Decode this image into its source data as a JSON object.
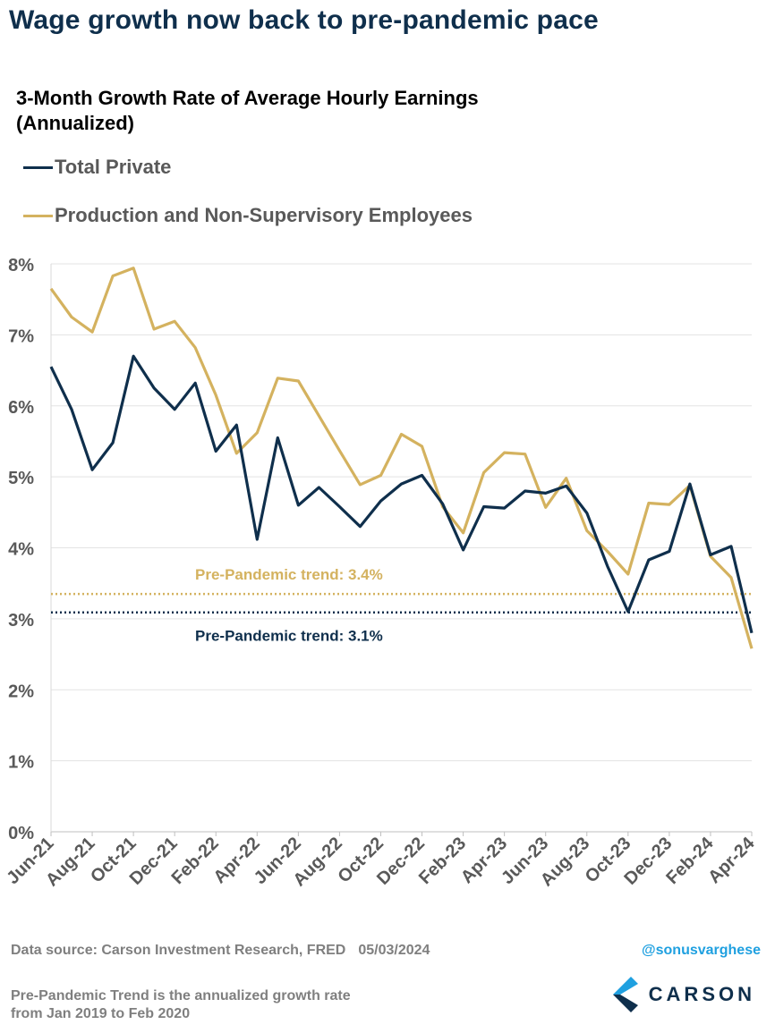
{
  "header": {
    "title": "Wage growth now back to pre-pandemic pace"
  },
  "chart_data": {
    "type": "line",
    "title": "3-Month Growth Rate of Average Hourly Earnings (Annualized)",
    "xlabel": "",
    "ylabel": "",
    "ylim": [
      0,
      8
    ],
    "yticks": [
      "0%",
      "1%",
      "2%",
      "3%",
      "4%",
      "5%",
      "6%",
      "7%",
      "8%"
    ],
    "grid": true,
    "legend_position": "top-left",
    "x": [
      "Jun-21",
      "Jul-21",
      "Aug-21",
      "Sep-21",
      "Oct-21",
      "Nov-21",
      "Dec-21",
      "Jan-22",
      "Feb-22",
      "Mar-22",
      "Apr-22",
      "May-22",
      "Jun-22",
      "Jul-22",
      "Aug-22",
      "Sep-22",
      "Oct-22",
      "Nov-22",
      "Dec-22",
      "Jan-23",
      "Feb-23",
      "Mar-23",
      "Apr-23",
      "May-23",
      "Jun-23",
      "Jul-23",
      "Aug-23",
      "Sep-23",
      "Oct-23",
      "Nov-23",
      "Dec-23",
      "Jan-24",
      "Feb-24",
      "Mar-24",
      "Apr-24"
    ],
    "x_tick_labels": [
      "Jun-21",
      "Aug-21",
      "Oct-21",
      "Dec-21",
      "Feb-22",
      "Apr-22",
      "Jun-22",
      "Aug-22",
      "Oct-22",
      "Dec-22",
      "Feb-23",
      "Apr-23",
      "Jun-23",
      "Aug-23",
      "Oct-23",
      "Dec-23",
      "Feb-24",
      "Apr-24"
    ],
    "series": [
      {
        "name": "Total Private",
        "color": "#0f2f4c",
        "values": [
          6.55,
          5.95,
          5.1,
          5.48,
          6.7,
          6.25,
          5.95,
          6.32,
          5.36,
          5.73,
          4.12,
          5.55,
          4.6,
          4.85,
          4.58,
          4.3,
          4.66,
          4.9,
          5.02,
          4.62,
          3.97,
          4.58,
          4.56,
          4.8,
          4.77,
          4.87,
          4.49,
          3.74,
          3.1,
          3.83,
          3.95,
          4.9,
          3.9,
          4.02,
          2.8
        ]
      },
      {
        "name": "Production and Non-Supervisory Employees",
        "color": "#d4b25f",
        "values": [
          7.65,
          7.25,
          7.04,
          7.83,
          7.94,
          7.08,
          7.19,
          6.82,
          6.15,
          5.33,
          5.62,
          6.39,
          6.35,
          5.86,
          5.37,
          4.89,
          5.02,
          5.6,
          5.43,
          4.58,
          4.21,
          5.06,
          5.34,
          5.32,
          4.57,
          4.98,
          4.24,
          3.95,
          3.63,
          4.63,
          4.61,
          4.88,
          3.88,
          3.58,
          2.58
        ]
      }
    ],
    "reference_lines": [
      {
        "label": "Pre-Pandemic trend: 3.4%",
        "value": 3.35,
        "color": "#d4b25f"
      },
      {
        "label": "Pre-Pandemic trend: 3.1%",
        "value": 3.09,
        "color": "#0f2f4c"
      }
    ]
  },
  "footer": {
    "source": "Data source: Carson Investment Research, FRED",
    "date": "05/03/2024",
    "handle": "@sonusvarghese",
    "note_line1": "Pre-Pandemic Trend is the annualized growth rate",
    "note_line2": "from Jan 2019 to Feb 2020",
    "logo_text": "CARSON"
  }
}
